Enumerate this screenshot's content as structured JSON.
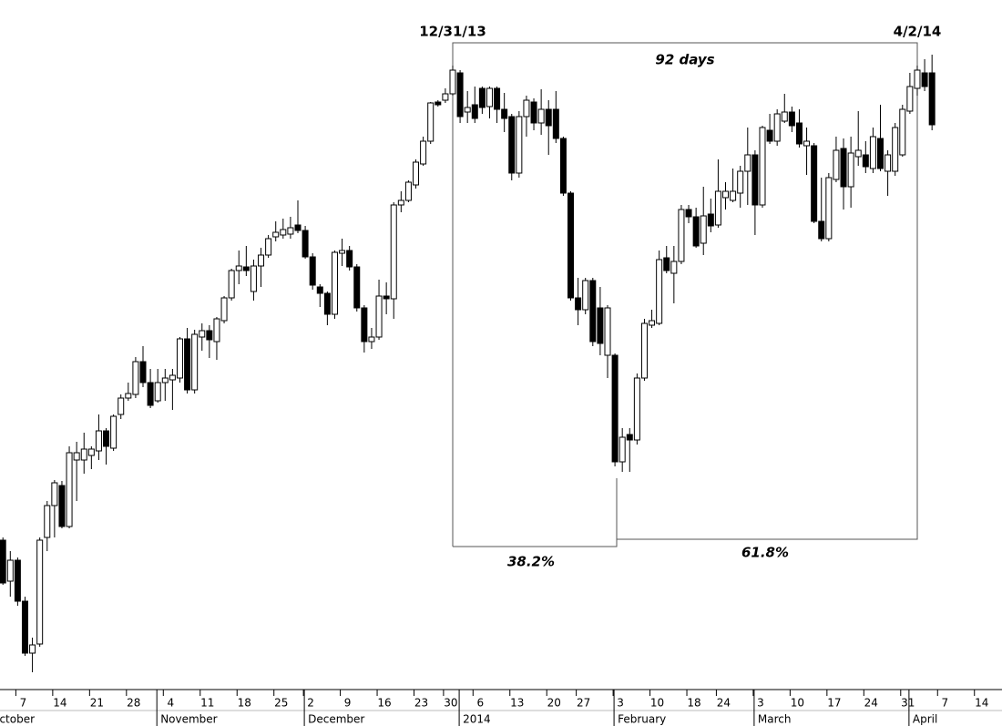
{
  "chart_data": {
    "type": "candlestick",
    "annotations": {
      "start_date": "12/31/13",
      "end_date": "4/2/14",
      "span": "92 days",
      "left_ratio": "38.2%",
      "right_ratio": "61.8%"
    },
    "open": [
      207,
      162,
      185,
      140,
      83,
      93,
      210,
      245,
      267,
      222,
      295,
      295,
      300,
      305,
      327,
      308,
      345,
      363,
      367,
      403,
      380,
      360,
      380,
      383,
      385,
      428,
      372,
      430,
      437,
      425,
      448,
      473,
      503,
      507,
      480,
      508,
      520,
      540,
      542,
      543,
      553,
      547,
      518,
      485,
      478,
      455,
      522,
      525,
      507,
      462,
      425,
      430,
      475,
      472,
      575,
      580,
      597,
      620,
      645,
      688,
      690,
      697,
      720,
      677,
      685,
      703,
      683,
      703,
      680,
      672,
      610,
      672,
      688,
      665,
      680,
      680,
      648,
      588,
      473,
      460,
      492,
      462,
      410,
      410,
      293,
      323,
      317,
      385,
      443,
      445,
      517,
      500,
      513,
      570,
      562,
      533,
      565,
      553,
      583,
      580,
      588,
      612,
      630,
      575,
      657,
      645,
      667,
      677,
      665,
      640,
      640,
      557,
      538,
      603,
      637,
      595,
      628,
      630,
      615,
      648,
      612,
      612,
      630,
      678,
      703,
      720,
      720
    ],
    "high": [
      210,
      195,
      188,
      145,
      100,
      210,
      250,
      273,
      272,
      310,
      315,
      325,
      310,
      345,
      330,
      345,
      367,
      380,
      408,
      420,
      395,
      395,
      395,
      395,
      430,
      440,
      438,
      445,
      443,
      452,
      475,
      505,
      525,
      530,
      515,
      528,
      542,
      557,
      560,
      562,
      580,
      552,
      522,
      488,
      480,
      525,
      538,
      530,
      510,
      465,
      440,
      493,
      490,
      578,
      590,
      602,
      625,
      650,
      688,
      690,
      703,
      728,
      723,
      700,
      705,
      705,
      705,
      705,
      698,
      675,
      678,
      695,
      692,
      702,
      690,
      700,
      650,
      590,
      495,
      495,
      495,
      485,
      465,
      412,
      330,
      330,
      390,
      450,
      460,
      525,
      530,
      530,
      575,
      575,
      572,
      595,
      582,
      625,
      600,
      615,
      618,
      660,
      635,
      662,
      675,
      680,
      697,
      683,
      680,
      660,
      643,
      605,
      610,
      650,
      648,
      650,
      678,
      645,
      660,
      685,
      635,
      665,
      685,
      720,
      728,
      735,
      740
    ],
    "low": [
      158,
      145,
      135,
      80,
      62,
      90,
      195,
      210,
      220,
      220,
      250,
      280,
      285,
      295,
      290,
      305,
      340,
      360,
      363,
      375,
      352,
      358,
      360,
      350,
      380,
      368,
      368,
      415,
      407,
      405,
      445,
      470,
      488,
      497,
      470,
      485,
      517,
      535,
      538,
      538,
      544,
      516,
      482,
      463,
      443,
      450,
      508,
      503,
      458,
      413,
      417,
      427,
      455,
      450,
      567,
      578,
      593,
      618,
      642,
      683,
      687,
      695,
      665,
      665,
      665,
      675,
      670,
      665,
      655,
      602,
      605,
      650,
      657,
      652,
      630,
      643,
      585,
      470,
      443,
      455,
      420,
      410,
      385,
      288,
      282,
      282,
      312,
      382,
      440,
      443,
      500,
      467,
      510,
      555,
      528,
      520,
      545,
      550,
      570,
      578,
      572,
      575,
      542,
      572,
      642,
      640,
      665,
      655,
      638,
      608,
      555,
      535,
      535,
      600,
      570,
      572,
      618,
      610,
      610,
      612,
      585,
      607,
      628,
      675,
      695,
      700,
      657
    ],
    "close": [
      160,
      185,
      140,
      83,
      92,
      207,
      245,
      270,
      222,
      303,
      303,
      307,
      307,
      327,
      310,
      343,
      363,
      368,
      403,
      380,
      355,
      380,
      385,
      388,
      428,
      372,
      433,
      437,
      427,
      450,
      473,
      503,
      508,
      503,
      508,
      520,
      538,
      545,
      548,
      550,
      547,
      518,
      487,
      478,
      455,
      523,
      525,
      507,
      462,
      425,
      430,
      475,
      472,
      575,
      580,
      600,
      622,
      645,
      687,
      685,
      697,
      723,
      672,
      682,
      670,
      682,
      703,
      680,
      670,
      610,
      672,
      690,
      665,
      680,
      662,
      648,
      588,
      473,
      460,
      492,
      425,
      423,
      462,
      293,
      320,
      317,
      385,
      445,
      448,
      515,
      503,
      513,
      570,
      562,
      530,
      563,
      552,
      590,
      590,
      590,
      612,
      630,
      575,
      660,
      645,
      675,
      677,
      662,
      642,
      645,
      557,
      538,
      605,
      635,
      595,
      632,
      635,
      617,
      650,
      615,
      630,
      660,
      680,
      705,
      723,
      705,
      663
    ],
    "ylim": [
      43,
      800
    ],
    "xticks": [
      {
        "value": 2,
        "label": "7"
      },
      {
        "value": 7,
        "label": "14"
      },
      {
        "value": 12,
        "label": "21"
      },
      {
        "value": 17,
        "label": "28"
      },
      {
        "value": 22,
        "label": "4"
      },
      {
        "value": 27,
        "label": "11"
      },
      {
        "value": 32,
        "label": "18"
      },
      {
        "value": 37,
        "label": "25"
      },
      {
        "value": 41,
        "label": "2"
      },
      {
        "value": 46,
        "label": "9"
      },
      {
        "value": 51,
        "label": "16"
      },
      {
        "value": 56,
        "label": "23"
      },
      {
        "value": 60,
        "label": "30"
      },
      {
        "value": 64,
        "label": "6"
      },
      {
        "value": 69,
        "label": "13"
      },
      {
        "value": 74,
        "label": "20"
      },
      {
        "value": 78,
        "label": "27"
      },
      {
        "value": 83,
        "label": "3"
      },
      {
        "value": 88,
        "label": "10"
      },
      {
        "value": 93,
        "label": "18"
      },
      {
        "value": 97,
        "label": "24"
      },
      {
        "value": 102,
        "label": "3"
      },
      {
        "value": 107,
        "label": "10"
      },
      {
        "value": 112,
        "label": "17"
      },
      {
        "value": 117,
        "label": "24"
      },
      {
        "value": 122,
        "label": "31"
      },
      {
        "value": 127,
        "label": "7"
      },
      {
        "value": 132,
        "label": "14"
      }
    ],
    "months": [
      {
        "value": -2,
        "label": "October"
      },
      {
        "value": 21,
        "label": "November"
      },
      {
        "value": 41,
        "label": "December"
      },
      {
        "value": 62,
        "label": "2014"
      },
      {
        "value": 83,
        "label": "February"
      },
      {
        "value": 102,
        "label": "March"
      },
      {
        "value": 123,
        "label": "April"
      }
    ]
  }
}
